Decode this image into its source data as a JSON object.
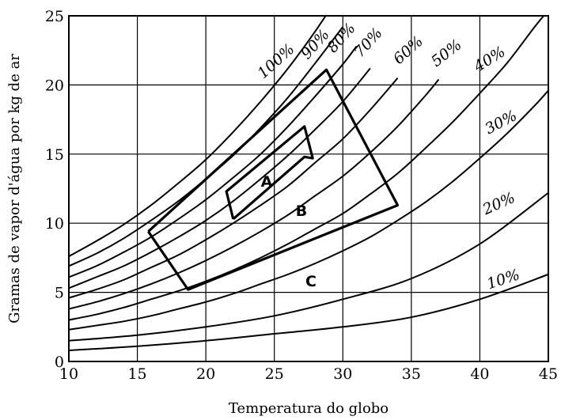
{
  "chart_data": {
    "type": "line",
    "xlabel": "Temperatura do globo",
    "ylabel": "Gramas de vapor d'água por kg de ar",
    "xlim": [
      10,
      45
    ],
    "ylim": [
      0,
      25
    ],
    "xticks": [
      "10",
      "15",
      "20",
      "25",
      "30",
      "35",
      "40",
      "45"
    ],
    "yticks": [
      "0",
      "5",
      "10",
      "15",
      "20",
      "25"
    ],
    "grid": true,
    "series": [
      {
        "name": "100%",
        "x": [
          10,
          12,
          14,
          16,
          18,
          20,
          22,
          24,
          26,
          28,
          30
        ],
        "values": [
          7.6,
          8.7,
          9.9,
          11.3,
          12.9,
          14.6,
          16.6,
          18.8,
          21.2,
          23.9,
          26.9
        ]
      },
      {
        "name": "90%",
        "x": [
          10,
          12,
          14,
          16,
          18,
          20,
          22,
          24,
          26,
          28,
          30
        ],
        "values": [
          6.9,
          7.8,
          8.9,
          10.2,
          11.6,
          13.2,
          14.9,
          16.9,
          19.1,
          21.6,
          24.2
        ]
      },
      {
        "name": "80%",
        "x": [
          10,
          12,
          14,
          16,
          18,
          20,
          22,
          24,
          26,
          28,
          30,
          31
        ],
        "values": [
          6.1,
          6.9,
          7.9,
          9.0,
          10.3,
          11.7,
          13.3,
          15.0,
          17.0,
          19.2,
          21.5,
          22.8
        ]
      },
      {
        "name": "70%",
        "x": [
          10,
          12,
          14,
          16,
          18,
          20,
          22,
          24,
          26,
          28,
          30,
          32
        ],
        "values": [
          5.3,
          6.1,
          6.9,
          7.9,
          9.0,
          10.2,
          11.6,
          13.2,
          14.9,
          16.8,
          18.8,
          21.2
        ]
      },
      {
        "name": "60%",
        "x": [
          10,
          12,
          14,
          16,
          18,
          20,
          22,
          24,
          26,
          28,
          30,
          32,
          34
        ],
        "values": [
          4.6,
          5.2,
          5.9,
          6.8,
          7.7,
          8.8,
          10.0,
          11.3,
          12.7,
          14.4,
          16.1,
          18.2,
          20.5
        ]
      },
      {
        "name": "50%",
        "x": [
          10,
          12,
          14,
          16,
          18,
          20,
          22,
          24,
          26,
          28,
          30,
          32,
          34,
          36,
          37
        ],
        "values": [
          3.8,
          4.3,
          4.9,
          5.6,
          6.4,
          7.3,
          8.3,
          9.4,
          10.6,
          12.0,
          13.4,
          15.1,
          17.0,
          19.2,
          20.4
        ]
      },
      {
        "name": "40%",
        "x": [
          10,
          12,
          14,
          16,
          18,
          20,
          22,
          24,
          26,
          28,
          30,
          32,
          34,
          36,
          38,
          40,
          42,
          44,
          45
        ],
        "values": [
          3.0,
          3.4,
          3.9,
          4.5,
          5.1,
          5.8,
          6.6,
          7.5,
          8.5,
          9.6,
          10.7,
          12.1,
          13.6,
          15.4,
          17.3,
          19.4,
          21.6,
          24.2,
          25.4
        ]
      },
      {
        "name": "30%",
        "x": [
          10,
          12,
          14,
          16,
          18,
          20,
          22,
          24,
          26,
          28,
          30,
          32,
          34,
          36,
          38,
          40,
          42,
          44,
          45
        ],
        "values": [
          2.3,
          2.6,
          2.9,
          3.3,
          3.8,
          4.3,
          4.9,
          5.6,
          6.3,
          7.1,
          8.0,
          9.0,
          10.2,
          11.5,
          13.0,
          14.7,
          16.5,
          18.5,
          19.6
        ]
      },
      {
        "name": "20%",
        "x": [
          10,
          15,
          20,
          25,
          30,
          35,
          40,
          45
        ],
        "values": [
          1.5,
          1.9,
          2.5,
          3.3,
          4.5,
          6.0,
          8.5,
          12.2
        ]
      },
      {
        "name": "10%",
        "x": [
          10,
          15,
          20,
          25,
          30,
          35,
          40,
          45
        ],
        "values": [
          0.8,
          1.1,
          1.5,
          2.0,
          2.5,
          3.2,
          4.5,
          6.3
        ]
      }
    ],
    "zones": [
      {
        "label": "A",
        "polygon": [
          [
            22,
            10.3
          ],
          [
            27.2,
            14.8
          ],
          [
            27.8,
            14.7
          ],
          [
            27.2,
            17.0
          ],
          [
            21.5,
            12.3
          ],
          [
            22,
            10.3
          ]
        ]
      },
      {
        "label": "B",
        "polygon": [
          [
            15.8,
            9.4
          ],
          [
            18.7,
            5.2
          ],
          [
            34.0,
            11.3
          ],
          [
            28.8,
            21.1
          ],
          [
            15.8,
            9.4
          ]
        ]
      },
      {
        "label": "C",
        "polygon": []
      }
    ],
    "annotations": [
      "A",
      "B",
      "C"
    ]
  }
}
